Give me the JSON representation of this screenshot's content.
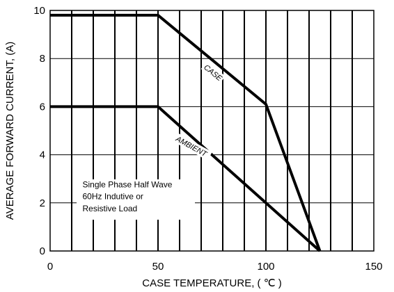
{
  "chart_data": {
    "type": "line",
    "xlabel": "CASE TEMPERATURE, ( ℃ )",
    "ylabel": "AVERAGE FORWARD  CURRENT, (A)",
    "xlim": [
      0,
      150
    ],
    "ylim": [
      0,
      10
    ],
    "x_ticks": [
      0,
      50,
      100,
      150
    ],
    "x_tick_labels": [
      "0",
      "50",
      "100",
      "150"
    ],
    "y_ticks": [
      0,
      2,
      4,
      6,
      8,
      10
    ],
    "y_tick_labels": [
      "0",
      "2",
      "4",
      "6",
      "8",
      "10"
    ],
    "x_grid_step": 10,
    "y_grid_step": 2,
    "grid": true,
    "series": [
      {
        "name": "CASE",
        "x": [
          0,
          50,
          100,
          125
        ],
        "y": [
          9.8,
          9.8,
          6.1,
          0
        ]
      },
      {
        "name": "AMBIENT",
        "x": [
          0,
          50,
          125
        ],
        "y": [
          6,
          6,
          0
        ]
      }
    ],
    "annotations": [
      {
        "text": "Single Phase Half Wave",
        "x": 15,
        "y": 2.65
      },
      {
        "text": "60Hz Indutive or",
        "x": 15,
        "y": 2.15
      },
      {
        "text": "Resistive Load",
        "x": 15,
        "y": 1.65
      }
    ],
    "curve_labels": [
      {
        "text": "CASE",
        "x": 71,
        "y": 7.6,
        "angle": 39
      },
      {
        "text": "AMBIENT",
        "x": 58,
        "y": 4.6,
        "angle": 29
      }
    ]
  }
}
